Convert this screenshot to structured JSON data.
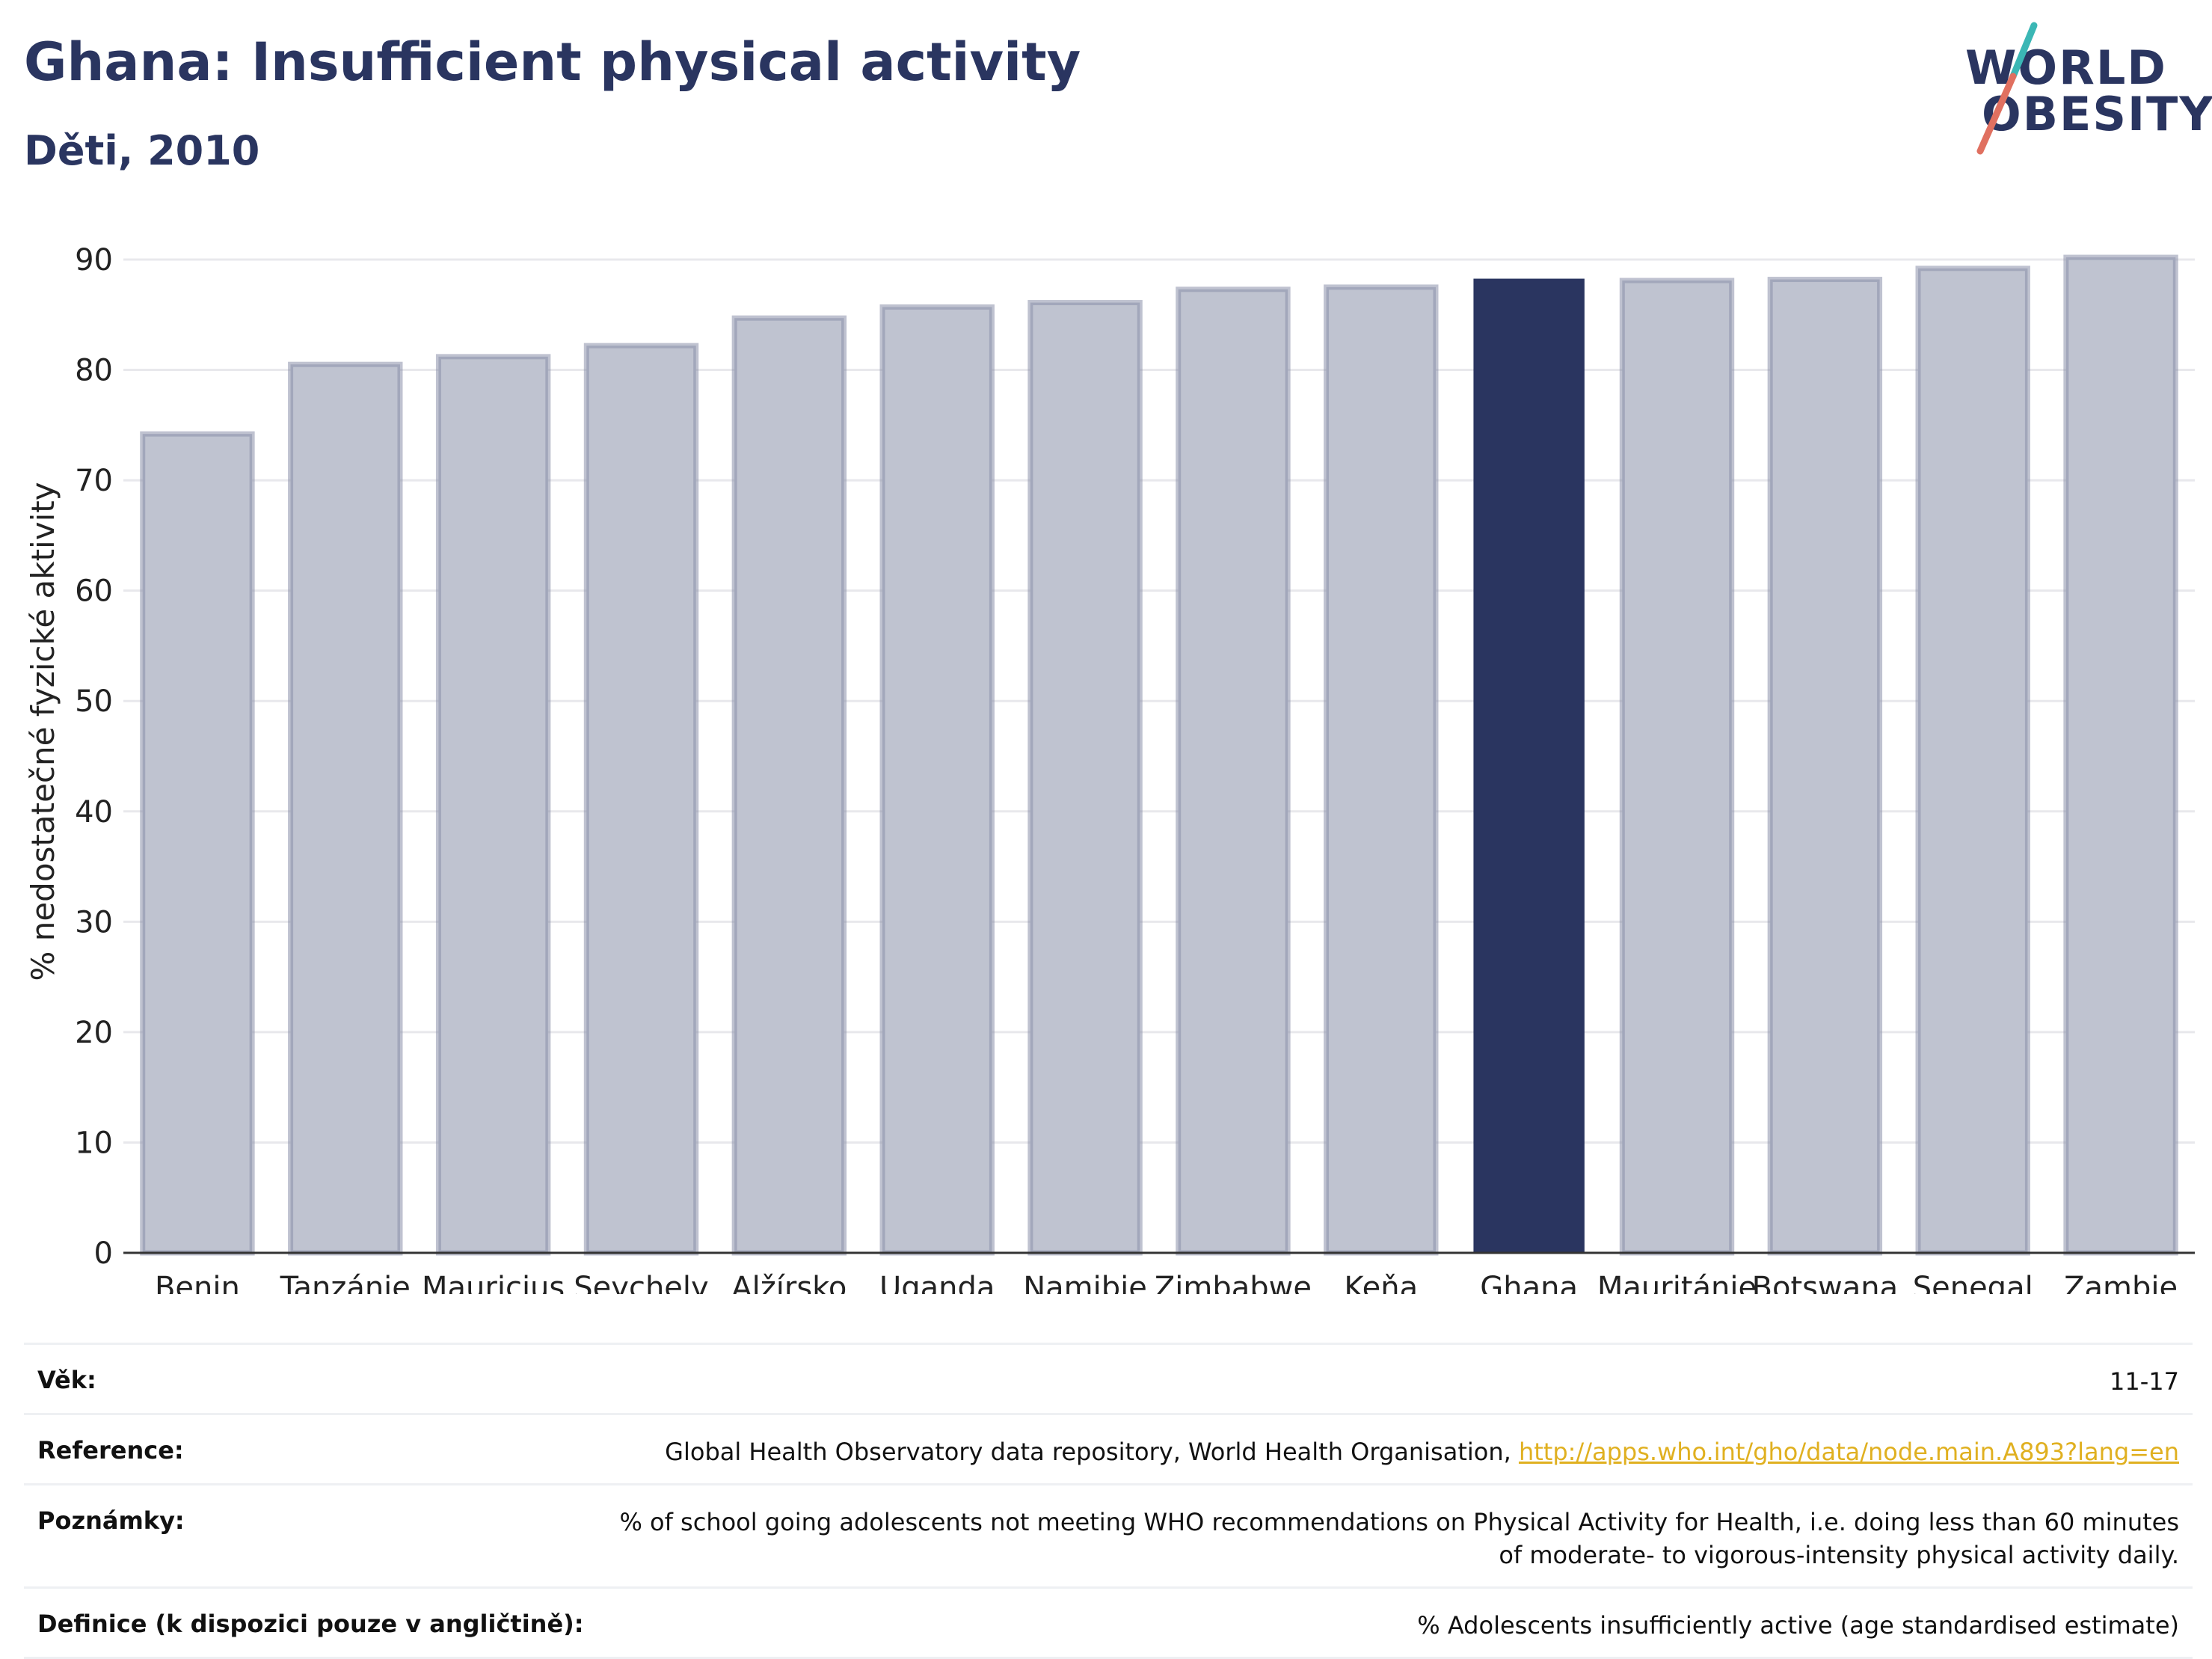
{
  "header": {
    "title": "Ghana: Insufficient physical activity",
    "subtitle": "Děti, 2010"
  },
  "logo": {
    "line1": "WORLD",
    "line2": "OBESITY",
    "icon": "world-obesity-logo"
  },
  "colors": {
    "highlight": "#2a3560",
    "bar": "#bfc3d0",
    "bar_edge": "#8a90aa",
    "grid": "#e8e8ec",
    "link": "#e0b020"
  },
  "chart_data": {
    "type": "bar",
    "categories": [
      "Benin",
      "Tanzánie",
      "Mauricius",
      "Seychely",
      "Alžírsko",
      "Uganda",
      "Namibie",
      "Zimbabwe",
      "Keňa",
      "Ghana",
      "Mauritánie",
      "Botswana",
      "Senegal",
      "Zambie"
    ],
    "values": [
      74.2,
      80.5,
      81.2,
      82.2,
      84.7,
      85.7,
      86.1,
      87.3,
      87.5,
      88.2,
      88.1,
      88.2,
      89.2,
      90.2
    ],
    "highlight": "Ghana",
    "ylabel": "% nedostatečné fyzické aktivity",
    "ylim": [
      0,
      90
    ],
    "yticks": [
      0,
      10,
      20,
      30,
      40,
      50,
      60,
      70,
      80,
      90
    ],
    "grid": true
  },
  "meta": {
    "rows": [
      {
        "label": "Věk:",
        "value": "11-17"
      },
      {
        "label": "Reference:",
        "value": "Global Health Observatory data repository, World Health Organisation, ",
        "link": "http://apps.who.int/gho/data/node.main.A893?lang=en"
      },
      {
        "label": "Poznámky:",
        "value": "% of school going adolescents not meeting WHO recommendations on Physical Activity for Health, i.e. doing less than 60 minutes of moderate- to vigorous-intensity physical activity daily."
      },
      {
        "label": "Definice (k dispozici pouze v angličtině):",
        "value": "% Adolescents insufficiently active (age standardised estimate)"
      }
    ]
  }
}
